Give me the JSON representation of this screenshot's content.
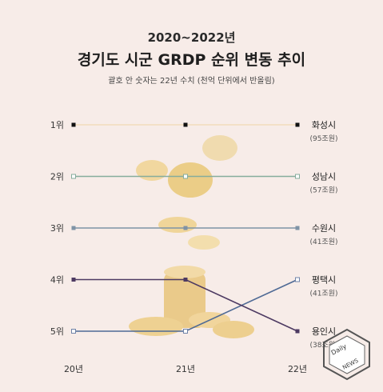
{
  "header": {
    "year_range": "2020~2022년",
    "title": "경기도 시군 GRDP 순위 변동 추이",
    "subtitle": "괄호 안 숫자는 22년 수치 (천억 단위에서 반올림)"
  },
  "chart_data": {
    "type": "line",
    "title": "경기도 시군 GRDP 순위 변동 추이",
    "subtitle": "괄호 안 숫자는 22년 수치 (천억 단위에서 반올림)",
    "x": [
      "20년",
      "21년",
      "22년"
    ],
    "y_labels": [
      "1위",
      "2위",
      "3위",
      "4위",
      "5위"
    ],
    "ylim": [
      1,
      5
    ],
    "y_inverted": true,
    "grid": false,
    "series": [
      {
        "name": "화성시",
        "values": [
          1,
          1,
          1
        ],
        "value_label": "(95조원)",
        "color": "#f2dcbc",
        "marker": "#111111",
        "marker_style": "filled"
      },
      {
        "name": "성남시",
        "values": [
          2,
          2,
          2
        ],
        "value_label": "(57조원)",
        "color": "#86ad9c",
        "marker": "#86ad9c",
        "marker_style": "open"
      },
      {
        "name": "수원시",
        "values": [
          3,
          3,
          3
        ],
        "value_label": "(41조원)",
        "color": "#7f93a6",
        "marker": "#7f93a6",
        "marker_style": "filled"
      },
      {
        "name": "평택시",
        "values": [
          5,
          5,
          4
        ],
        "value_label": "(41조원)",
        "color": "#4f6a95",
        "marker": "#6f83a8",
        "marker_style": "open"
      },
      {
        "name": "용인시",
        "values": [
          4,
          4,
          5
        ],
        "value_label": "(38조원)",
        "color": "#4d3a62",
        "marker": "#4d3a62",
        "marker_style": "filled"
      }
    ]
  },
  "watermark": {
    "text": "Daily NEWS"
  }
}
